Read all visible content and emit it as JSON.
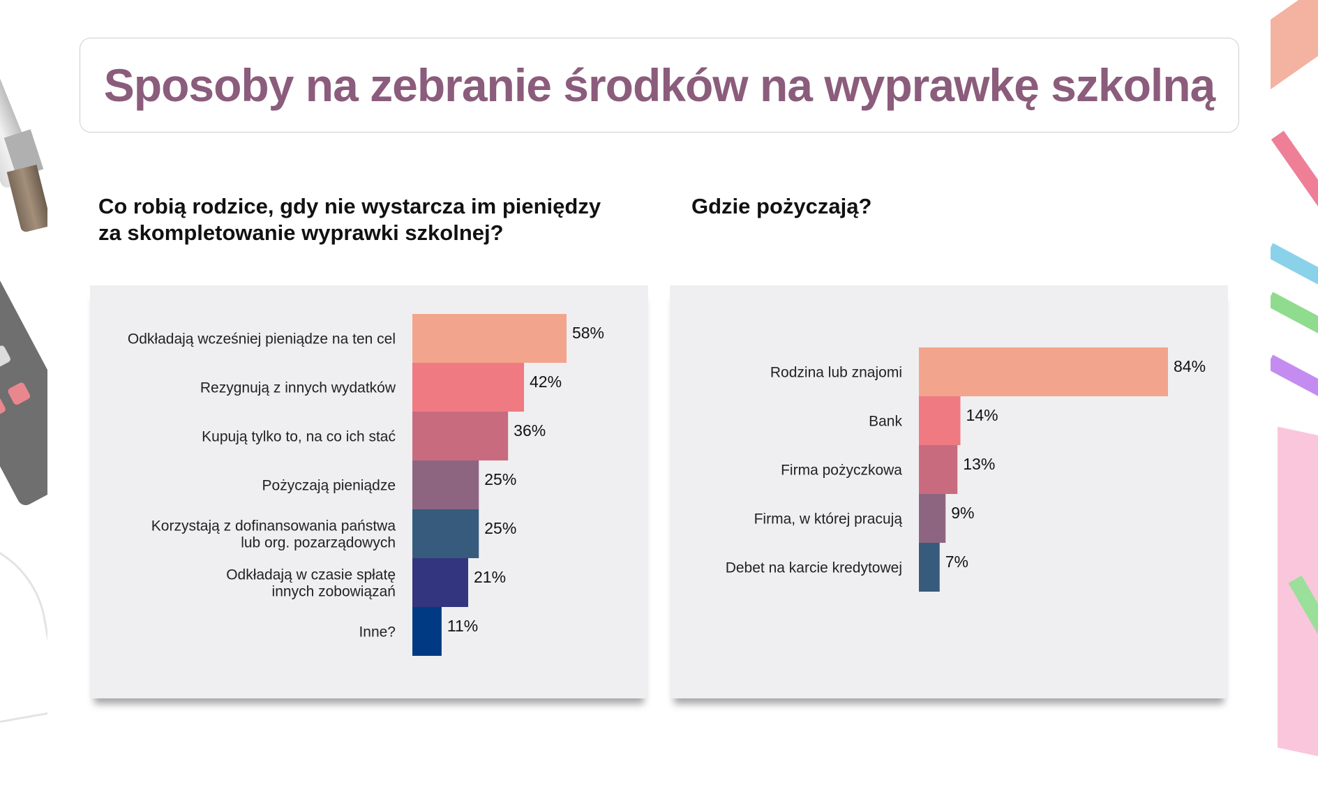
{
  "title": "Sposoby na zebranie środków na wyprawkę szkolną",
  "colors": {
    "title": "#8b5c7b",
    "palette": [
      "#f2a58c",
      "#ef7a82",
      "#c96b7f",
      "#8e6580",
      "#365b7d",
      "#33357e",
      "#003a83"
    ]
  },
  "chart_data": [
    {
      "type": "bar",
      "orientation": "horizontal",
      "title": "Co robią rodzice, gdy nie wystarcza im pieniędzy za skompletowanie wyprawki szkolnej?",
      "title_lines": [
        "Co robią rodzice, gdy nie wystarcza im pieniędzy",
        "za skompletowanie wyprawki szkolnej?"
      ],
      "unit": "%",
      "categories": [
        [
          "Odkładają wcześniej pieniądze na ten cel"
        ],
        [
          "Rezygnują z innych wydatków"
        ],
        [
          "Kupują tylko to, na co ich stać"
        ],
        [
          "Pożyczają pieniądze"
        ],
        [
          "Korzystają z dofinansowania państwa",
          "lub org. pozarządowych"
        ],
        [
          "Odkładają w czasie spłatę",
          "innych zobowiązań"
        ],
        [
          "Inne?"
        ]
      ],
      "values": [
        58,
        42,
        36,
        25,
        25,
        21,
        11
      ],
      "labels": [
        "58%",
        "42%",
        "36%",
        "25%",
        "25%",
        "21%",
        "11%"
      ]
    },
    {
      "type": "bar",
      "orientation": "horizontal",
      "title": "Gdzie pożyczają?",
      "title_lines": [
        "Gdzie pożyczają?"
      ],
      "unit": "%",
      "categories": [
        [
          "Rodzina lub znajomi"
        ],
        [
          "Bank"
        ],
        [
          "Firma pożyczkowa"
        ],
        [
          "Firma, w której pracują"
        ],
        [
          "Debet na karcie kredytowej"
        ]
      ],
      "values": [
        84,
        14,
        13,
        9,
        7
      ],
      "labels": [
        "84%",
        "14%",
        "13%",
        "9%",
        "7%"
      ]
    }
  ]
}
